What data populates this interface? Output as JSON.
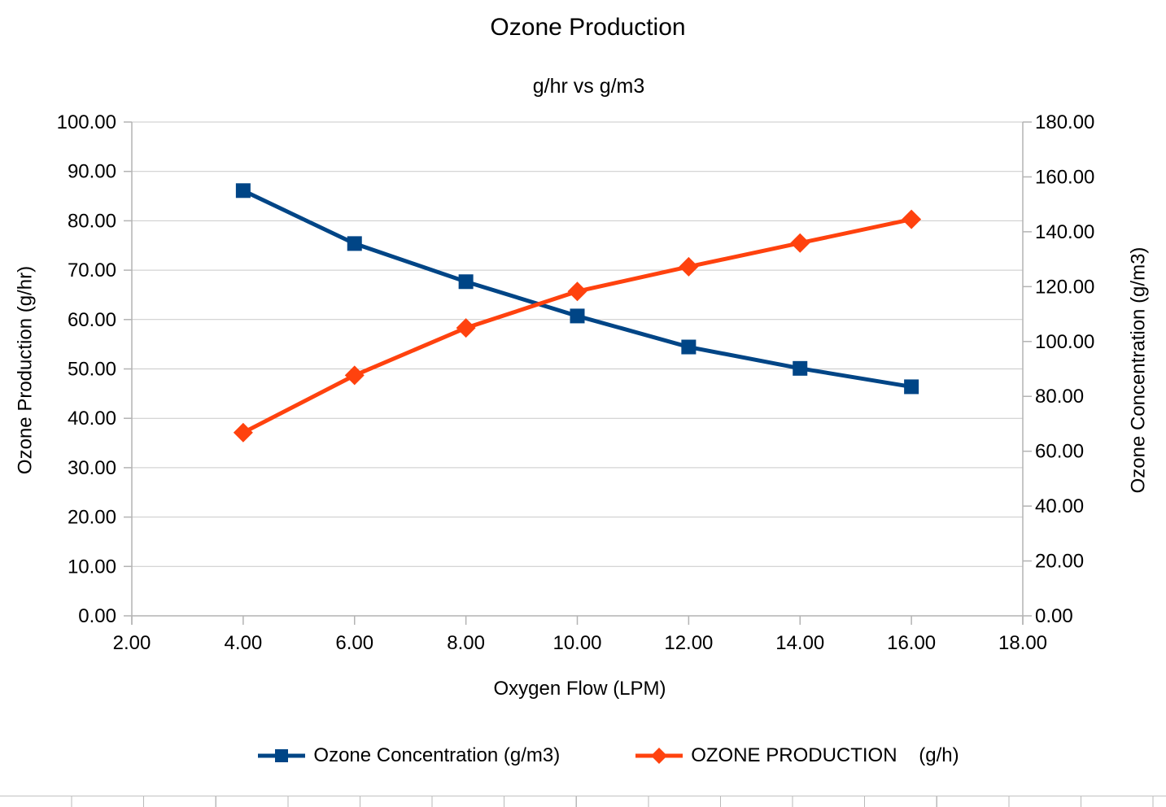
{
  "colors": {
    "series_blue": "#004586",
    "series_orange": "#ff420e",
    "grid": "#c9c9c9",
    "axis": "#b3b3b3",
    "text": "#000000",
    "background": "#ffffff"
  },
  "chart_data": {
    "type": "line",
    "title": "Ozone Production",
    "subtitle": "g/hr vs g/m3",
    "grid": "horizontal",
    "x_axis": {
      "title": "Oxygen Flow (LPM)",
      "min": 2,
      "max": 18,
      "tick_step": 2,
      "tick_labels": [
        "2.00",
        "4.00",
        "6.00",
        "8.00",
        "10.00",
        "12.00",
        "14.00",
        "16.00",
        "18.00"
      ]
    },
    "left_axis": {
      "title": "Ozone Production (g/hr)",
      "min": 0,
      "max": 100,
      "tick_step": 10,
      "tick_labels": [
        "0.00",
        "10.00",
        "20.00",
        "30.00",
        "40.00",
        "50.00",
        "60.00",
        "70.00",
        "80.00",
        "90.00",
        "100.00"
      ]
    },
    "right_axis": {
      "title": "Ozone Concentration (g/m3)",
      "min": 0,
      "max": 180,
      "tick_step": 20,
      "tick_labels": [
        "0.00",
        "20.00",
        "40.00",
        "60.00",
        "80.00",
        "100.00",
        "120.00",
        "140.00",
        "160.00",
        "180.00"
      ]
    },
    "x": [
      4,
      6,
      8,
      10,
      12,
      14,
      16
    ],
    "series": [
      {
        "name": "Ozone Concentration (g/m3)",
        "axis": "right",
        "color": "#004586",
        "marker": "square",
        "values": [
          155.0,
          135.7,
          121.8,
          109.3,
          98.0,
          90.2,
          83.5
        ]
      },
      {
        "name": "OZONE PRODUCTION    (g/h)",
        "axis": "left",
        "color": "#ff420e",
        "marker": "diamond",
        "values": [
          37.1,
          48.7,
          58.3,
          65.7,
          70.7,
          75.5,
          80.3
        ]
      }
    ],
    "legend": {
      "position": "bottom"
    }
  }
}
